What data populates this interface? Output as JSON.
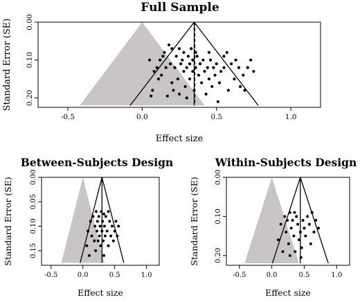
{
  "chart_data": [
    {
      "type": "scatter",
      "title": "Full Sample",
      "xlabel": "Effect size",
      "ylabel": "Standard Error (SE)",
      "xlim": [
        -0.7,
        1.2
      ],
      "ylim": [
        0.225,
        0.0
      ],
      "x_ticks": [
        {
          "v": -0.5,
          "label": "-0.5"
        },
        {
          "v": 0.0,
          "label": "0.0"
        },
        {
          "v": 0.5,
          "label": "0.5"
        },
        {
          "v": 1.0,
          "label": "1.0"
        }
      ],
      "y_ticks": [
        {
          "v": 0.0,
          "label": "0.00"
        },
        {
          "v": 0.1,
          "label": "0.10"
        },
        {
          "v": 0.2,
          "label": "0.20"
        }
      ],
      "funnel_center": 0.35,
      "funnel_max_se": 0.22,
      "pooled_estimate": 0.355,
      "shaded_triangle": {
        "apex": [
          0.0,
          0.0
        ],
        "base_left": -0.42,
        "base_right": 0.42,
        "base_se": 0.22
      },
      "grid": false,
      "points": [
        [
          0.05,
          0.1
        ],
        [
          0.06,
          0.195
        ],
        [
          0.07,
          0.18
        ],
        [
          0.08,
          0.13
        ],
        [
          0.1,
          0.12
        ],
        [
          0.11,
          0.15
        ],
        [
          0.12,
          0.1
        ],
        [
          0.13,
          0.14
        ],
        [
          0.14,
          0.09
        ],
        [
          0.15,
          0.08
        ],
        [
          0.16,
          0.12
        ],
        [
          0.17,
          0.195
        ],
        [
          0.18,
          0.06
        ],
        [
          0.19,
          0.11
        ],
        [
          0.2,
          0.07
        ],
        [
          0.2,
          0.16
        ],
        [
          0.21,
          0.18
        ],
        [
          0.22,
          0.12
        ],
        [
          0.23,
          0.09
        ],
        [
          0.24,
          0.15
        ],
        [
          0.25,
          0.07
        ],
        [
          0.25,
          0.19
        ],
        [
          0.26,
          0.11
        ],
        [
          0.27,
          0.1
        ],
        [
          0.28,
          0.13
        ],
        [
          0.28,
          0.08
        ],
        [
          0.29,
          0.17
        ],
        [
          0.3,
          0.12
        ],
        [
          0.3,
          0.2
        ],
        [
          0.31,
          0.09
        ],
        [
          0.32,
          0.11
        ],
        [
          0.32,
          0.15
        ],
        [
          0.33,
          0.07
        ],
        [
          0.34,
          0.1
        ],
        [
          0.34,
          0.13
        ],
        [
          0.35,
          0.18
        ],
        [
          0.36,
          0.12
        ],
        [
          0.37,
          0.09
        ],
        [
          0.38,
          0.14
        ],
        [
          0.39,
          0.11
        ],
        [
          0.4,
          0.16
        ],
        [
          0.41,
          0.1
        ],
        [
          0.42,
          0.13
        ],
        [
          0.43,
          0.19
        ],
        [
          0.44,
          0.12
        ],
        [
          0.45,
          0.15
        ],
        [
          0.46,
          0.1
        ],
        [
          0.47,
          0.17
        ],
        [
          0.48,
          0.12
        ],
        [
          0.49,
          0.14
        ],
        [
          0.5,
          0.11
        ],
        [
          0.51,
          0.21
        ],
        [
          0.52,
          0.16
        ],
        [
          0.53,
          0.13
        ],
        [
          0.55,
          0.12
        ],
        [
          0.57,
          0.08
        ],
        [
          0.58,
          0.18
        ],
        [
          0.6,
          0.11
        ],
        [
          0.62,
          0.15
        ],
        [
          0.63,
          0.1
        ],
        [
          0.65,
          0.12
        ],
        [
          0.66,
          0.17
        ],
        [
          0.68,
          0.14
        ],
        [
          0.69,
          0.18
        ],
        [
          0.71,
          0.12
        ],
        [
          0.73,
          0.1
        ],
        [
          0.75,
          0.13
        ],
        [
          0.55,
          0.09
        ],
        [
          0.45,
          0.08
        ],
        [
          0.36,
          0.08
        ]
      ]
    },
    {
      "type": "scatter",
      "title": "Between-Subjects Design",
      "xlabel": "Effect size",
      "ylabel": "Standard Error (SE)",
      "xlim": [
        -0.65,
        1.2
      ],
      "ylim": [
        0.18,
        0.0
      ],
      "x_ticks": [
        {
          "v": -0.5,
          "label": "-0.5"
        },
        {
          "v": 0.0,
          "label": "0.0"
        },
        {
          "v": 0.5,
          "label": "0.5"
        },
        {
          "v": 1.0,
          "label": "1.0"
        }
      ],
      "y_ticks": [
        {
          "v": 0.0,
          "label": "0.00"
        },
        {
          "v": 0.05,
          "label": "0.05"
        },
        {
          "v": 0.1,
          "label": "0.10"
        },
        {
          "v": 0.15,
          "label": "0.15"
        }
      ],
      "funnel_center": 0.3,
      "funnel_max_se": 0.175,
      "pooled_estimate": 0.3,
      "shaded_triangle": {
        "apex": [
          0.0,
          0.0
        ],
        "base_left": -0.34,
        "base_right": 0.34,
        "base_se": 0.175
      },
      "grid": false,
      "points": [
        [
          0.06,
          0.14
        ],
        [
          0.08,
          0.11
        ],
        [
          0.1,
          0.16
        ],
        [
          0.12,
          0.09
        ],
        [
          0.14,
          0.12
        ],
        [
          0.16,
          0.08
        ],
        [
          0.18,
          0.13
        ],
        [
          0.19,
          0.1
        ],
        [
          0.2,
          0.15
        ],
        [
          0.21,
          0.07
        ],
        [
          0.22,
          0.11
        ],
        [
          0.23,
          0.09
        ],
        [
          0.24,
          0.13
        ],
        [
          0.25,
          0.08
        ],
        [
          0.26,
          0.12
        ],
        [
          0.27,
          0.1
        ],
        [
          0.28,
          0.14
        ],
        [
          0.29,
          0.07
        ],
        [
          0.3,
          0.11
        ],
        [
          0.31,
          0.09
        ],
        [
          0.32,
          0.13
        ],
        [
          0.33,
          0.16
        ],
        [
          0.34,
          0.1
        ],
        [
          0.35,
          0.12
        ],
        [
          0.36,
          0.08
        ],
        [
          0.38,
          0.11
        ],
        [
          0.4,
          0.14
        ],
        [
          0.42,
          0.09
        ],
        [
          0.44,
          0.12
        ],
        [
          0.46,
          0.1
        ],
        [
          0.48,
          0.13
        ],
        [
          0.5,
          0.11
        ],
        [
          0.52,
          0.09
        ],
        [
          0.54,
          0.12
        ],
        [
          0.56,
          0.1
        ],
        [
          0.4,
          0.07
        ],
        [
          0.33,
          0.075
        ]
      ]
    },
    {
      "type": "scatter",
      "title": "Within-Subjects Design",
      "xlabel": "Effect size",
      "ylabel": "Standard Error (SE)",
      "xlim": [
        -0.7,
        1.2
      ],
      "ylim": [
        0.225,
        0.0
      ],
      "x_ticks": [
        {
          "v": -0.5,
          "label": "-0.5"
        },
        {
          "v": 0.0,
          "label": "0.0"
        },
        {
          "v": 0.5,
          "label": "0.5"
        },
        {
          "v": 1.0,
          "label": "1.0"
        }
      ],
      "y_ticks": [
        {
          "v": 0.0,
          "label": "0.00"
        },
        {
          "v": 0.1,
          "label": "0.10"
        },
        {
          "v": 0.2,
          "label": "0.20"
        }
      ],
      "funnel_center": 0.44,
      "funnel_max_se": 0.22,
      "pooled_estimate": 0.44,
      "shaded_triangle": {
        "apex": [
          0.0,
          0.0
        ],
        "base_left": -0.42,
        "base_right": 0.42,
        "base_se": 0.22
      },
      "grid": false,
      "points": [
        [
          0.1,
          0.16
        ],
        [
          0.14,
          0.12
        ],
        [
          0.17,
          0.19
        ],
        [
          0.2,
          0.1
        ],
        [
          0.22,
          0.14
        ],
        [
          0.24,
          0.11
        ],
        [
          0.26,
          0.17
        ],
        [
          0.28,
          0.09
        ],
        [
          0.3,
          0.13
        ],
        [
          0.32,
          0.11
        ],
        [
          0.34,
          0.15
        ],
        [
          0.36,
          0.19
        ],
        [
          0.38,
          0.1
        ],
        [
          0.4,
          0.12
        ],
        [
          0.42,
          0.16
        ],
        [
          0.44,
          0.14
        ],
        [
          0.46,
          0.18
        ],
        [
          0.48,
          0.11
        ],
        [
          0.5,
          0.13
        ],
        [
          0.52,
          0.15
        ],
        [
          0.55,
          0.1
        ],
        [
          0.58,
          0.12
        ],
        [
          0.6,
          0.17
        ],
        [
          0.62,
          0.09
        ],
        [
          0.65,
          0.14
        ],
        [
          0.68,
          0.11
        ],
        [
          0.72,
          0.13
        ],
        [
          0.45,
          0.205
        ],
        [
          0.28,
          0.2
        ],
        [
          0.35,
          0.09
        ]
      ]
    }
  ]
}
